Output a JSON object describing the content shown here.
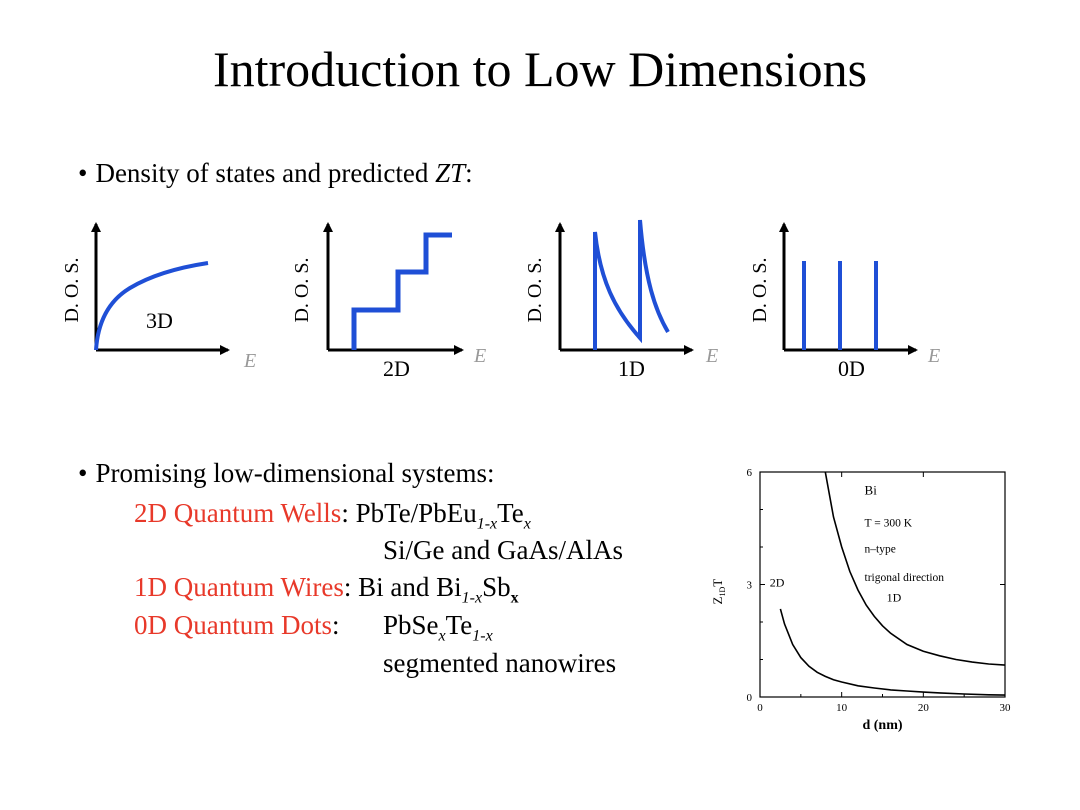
{
  "slide": {
    "title": "Introduction to Low Dimensions",
    "bullet1": {
      "text": "Density of states and predicted ",
      "emph": "ZT",
      "suffix": ":"
    },
    "dos_panels": [
      {
        "ylabel": "D. O. S.",
        "xlabel": "E",
        "tag": "3D"
      },
      {
        "ylabel": "D. O. S.",
        "xlabel": "E",
        "tag": "2D"
      },
      {
        "ylabel": "D. O. S.",
        "xlabel": "E",
        "tag": "1D"
      },
      {
        "ylabel": "D. O. S.",
        "xlabel": "E",
        "tag": "0D"
      }
    ],
    "bullet2": "Promising low-dimensional systems:",
    "systems": {
      "wells_label": "2D Quantum Wells",
      "wires_label": "1D Quantum Wires",
      "dots_label": "0D Quantum Dots",
      "colon": ":",
      "wells_line1": {
        "a": "PbTe/PbEu",
        "sub": "1-x",
        "b": "Te",
        "sub2": "x"
      },
      "wells_line2": "Si/Ge and GaAs/AlAs",
      "wires_line": {
        "a": "Bi and Bi",
        "sub": "1-x",
        "b": "Sb",
        "sub2": "x"
      },
      "dots_line1": {
        "a": "PbSe",
        "sub": "x",
        "b": "Te",
        "sub2": "1-x"
      },
      "dots_line2": "segmented nanowires"
    }
  },
  "chart_data": {
    "type": "line",
    "title": "",
    "xlabel": "d (nm)",
    "ylabel": "Z",
    "ylabel_sub": "1D",
    "ylabel_suffix": "T",
    "xlim": [
      0,
      30
    ],
    "ylim": [
      0,
      6
    ],
    "xticks": [
      0,
      10,
      20,
      30
    ],
    "yticks": [
      0,
      3,
      6
    ],
    "annotations": [
      "Bi",
      "T = 300 K",
      "n–type",
      "trigonal direction"
    ],
    "series": [
      {
        "name": "1D",
        "x": [
          8,
          9,
          10,
          11,
          12,
          13,
          14,
          15,
          16,
          18,
          20,
          22,
          24,
          26,
          28,
          30
        ],
        "y": [
          6.0,
          4.8,
          4.0,
          3.35,
          2.85,
          2.45,
          2.15,
          1.9,
          1.7,
          1.4,
          1.22,
          1.1,
          1.0,
          0.93,
          0.88,
          0.85
        ]
      },
      {
        "name": "2D",
        "x": [
          2.5,
          3,
          4,
          5,
          6,
          7,
          8,
          9,
          10,
          12,
          14,
          16,
          18,
          20,
          22,
          25,
          28,
          30
        ],
        "y": [
          2.35,
          1.95,
          1.4,
          1.05,
          0.82,
          0.66,
          0.55,
          0.46,
          0.4,
          0.3,
          0.24,
          0.19,
          0.16,
          0.13,
          0.11,
          0.08,
          0.06,
          0.05
        ]
      }
    ]
  }
}
